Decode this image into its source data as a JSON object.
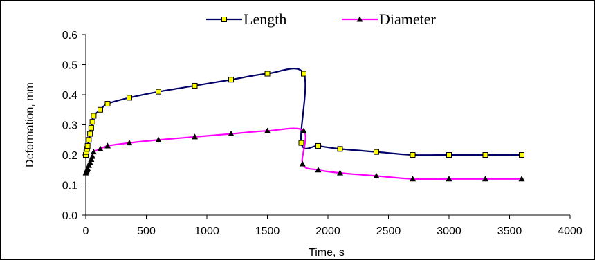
{
  "chart_data": {
    "type": "line",
    "xlabel": "Time, s",
    "ylabel": "Deformation, mm",
    "xlim": [
      0,
      4000
    ],
    "ylim": [
      0,
      0.6
    ],
    "x_ticks": [
      "0",
      "500",
      "1000",
      "1500",
      "2000",
      "2500",
      "3000",
      "3500",
      "4000"
    ],
    "y_ticks": [
      "0.0",
      "0.1",
      "0.2",
      "0.3",
      "0.4",
      "0.5",
      "0.6"
    ],
    "grid": false,
    "legend_position": "top",
    "series": [
      {
        "name": "Length",
        "color": "#000066",
        "marker": "square",
        "marker_color": "#FFFF00",
        "points": [
          [
            0,
            0.2
          ],
          [
            5,
            0.21
          ],
          [
            10,
            0.22
          ],
          [
            15,
            0.23
          ],
          [
            25,
            0.25
          ],
          [
            35,
            0.27
          ],
          [
            45,
            0.29
          ],
          [
            55,
            0.31
          ],
          [
            65,
            0.33
          ],
          [
            120,
            0.35
          ],
          [
            180,
            0.37
          ],
          [
            360,
            0.39
          ],
          [
            600,
            0.41
          ],
          [
            900,
            0.43
          ],
          [
            1200,
            0.45
          ],
          [
            1500,
            0.47
          ],
          [
            1800,
            0.47
          ],
          [
            1780,
            0.24
          ],
          [
            1920,
            0.23
          ],
          [
            2100,
            0.22
          ],
          [
            2400,
            0.21
          ],
          [
            2700,
            0.2
          ],
          [
            3000,
            0.2
          ],
          [
            3300,
            0.2
          ],
          [
            3600,
            0.2
          ]
        ]
      },
      {
        "name": "Diameter",
        "color": "#FF00FF",
        "marker": "triangle",
        "marker_color": "#000000",
        "points": [
          [
            0,
            0.14
          ],
          [
            5,
            0.145
          ],
          [
            10,
            0.15
          ],
          [
            15,
            0.155
          ],
          [
            25,
            0.165
          ],
          [
            35,
            0.175
          ],
          [
            45,
            0.185
          ],
          [
            55,
            0.195
          ],
          [
            65,
            0.21
          ],
          [
            120,
            0.22
          ],
          [
            180,
            0.23
          ],
          [
            360,
            0.24
          ],
          [
            600,
            0.25
          ],
          [
            900,
            0.26
          ],
          [
            1200,
            0.27
          ],
          [
            1500,
            0.28
          ],
          [
            1800,
            0.28
          ],
          [
            1790,
            0.17
          ],
          [
            1920,
            0.15
          ],
          [
            2100,
            0.14
          ],
          [
            2400,
            0.13
          ],
          [
            2700,
            0.12
          ],
          [
            3000,
            0.12
          ],
          [
            3300,
            0.12
          ],
          [
            3600,
            0.12
          ]
        ]
      }
    ]
  }
}
